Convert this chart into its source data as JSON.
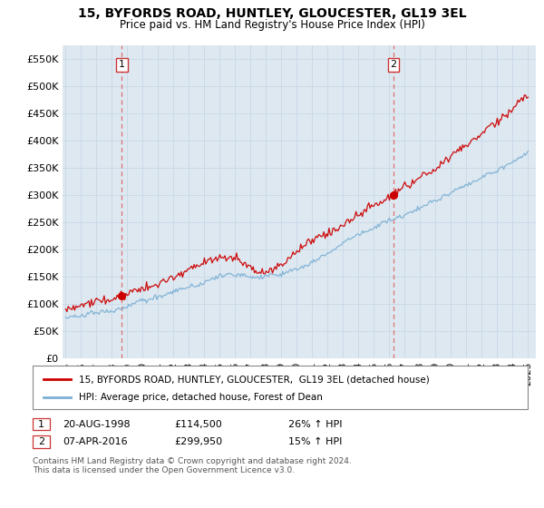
{
  "title": "15, BYFORDS ROAD, HUNTLEY, GLOUCESTER, GL19 3EL",
  "subtitle": "Price paid vs. HM Land Registry's House Price Index (HPI)",
  "ylabel_ticks": [
    "£0",
    "£50K",
    "£100K",
    "£150K",
    "£200K",
    "£250K",
    "£300K",
    "£350K",
    "£400K",
    "£450K",
    "£500K",
    "£550K"
  ],
  "ytick_values": [
    0,
    50000,
    100000,
    150000,
    200000,
    250000,
    300000,
    350000,
    400000,
    450000,
    500000,
    550000
  ],
  "ylim": [
    0,
    575000
  ],
  "xlim_start": 1994.8,
  "xlim_end": 2025.5,
  "sale1_date": 1998.64,
  "sale1_price": 114500,
  "sale2_date": 2016.27,
  "sale2_price": 299950,
  "legend_house": "15, BYFORDS ROAD, HUNTLEY, GLOUCESTER,  GL19 3EL (detached house)",
  "legend_hpi": "HPI: Average price, detached house, Forest of Dean",
  "footnote": "Contains HM Land Registry data © Crown copyright and database right 2024.\nThis data is licensed under the Open Government Licence v3.0.",
  "line_color_house": "#cc0000",
  "line_color_hpi": "#7bafd4",
  "vline_color": "#e07070",
  "plot_bg_color": "#dde8f0",
  "background_color": "#ffffff",
  "grid_color": "#c8d8e8",
  "xticks": [
    1995,
    1996,
    1997,
    1998,
    1999,
    2000,
    2001,
    2002,
    2003,
    2004,
    2005,
    2006,
    2007,
    2008,
    2009,
    2010,
    2011,
    2012,
    2013,
    2014,
    2015,
    2016,
    2017,
    2018,
    2019,
    2020,
    2021,
    2022,
    2023,
    2024,
    2025
  ]
}
